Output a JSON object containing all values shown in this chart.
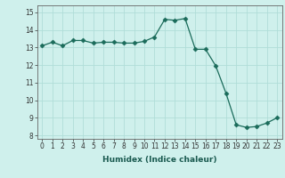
{
  "x": [
    0,
    1,
    2,
    3,
    4,
    5,
    6,
    7,
    8,
    9,
    10,
    11,
    12,
    13,
    14,
    15,
    16,
    17,
    18,
    19,
    20,
    21,
    22,
    23
  ],
  "y": [
    13.1,
    13.3,
    13.1,
    13.4,
    13.4,
    13.25,
    13.3,
    13.3,
    13.25,
    13.25,
    13.35,
    13.6,
    14.6,
    14.55,
    14.65,
    12.9,
    12.9,
    11.95,
    10.4,
    8.6,
    8.45,
    8.5,
    8.7,
    9.0
  ],
  "xlabel": "Humidex (Indice chaleur)",
  "xlim": [
    -0.5,
    23.5
  ],
  "ylim": [
    7.8,
    15.4
  ],
  "yticks": [
    8,
    9,
    10,
    11,
    12,
    13,
    14,
    15
  ],
  "xticks": [
    0,
    1,
    2,
    3,
    4,
    5,
    6,
    7,
    8,
    9,
    10,
    11,
    12,
    13,
    14,
    15,
    16,
    17,
    18,
    19,
    20,
    21,
    22,
    23
  ],
  "line_color": "#1a6b5a",
  "marker": "D",
  "marker_size": 2.5,
  "bg_color": "#cff0ec",
  "grid_color": "#b0ddd8",
  "label_fontsize": 6.5,
  "tick_fontsize": 5.5
}
